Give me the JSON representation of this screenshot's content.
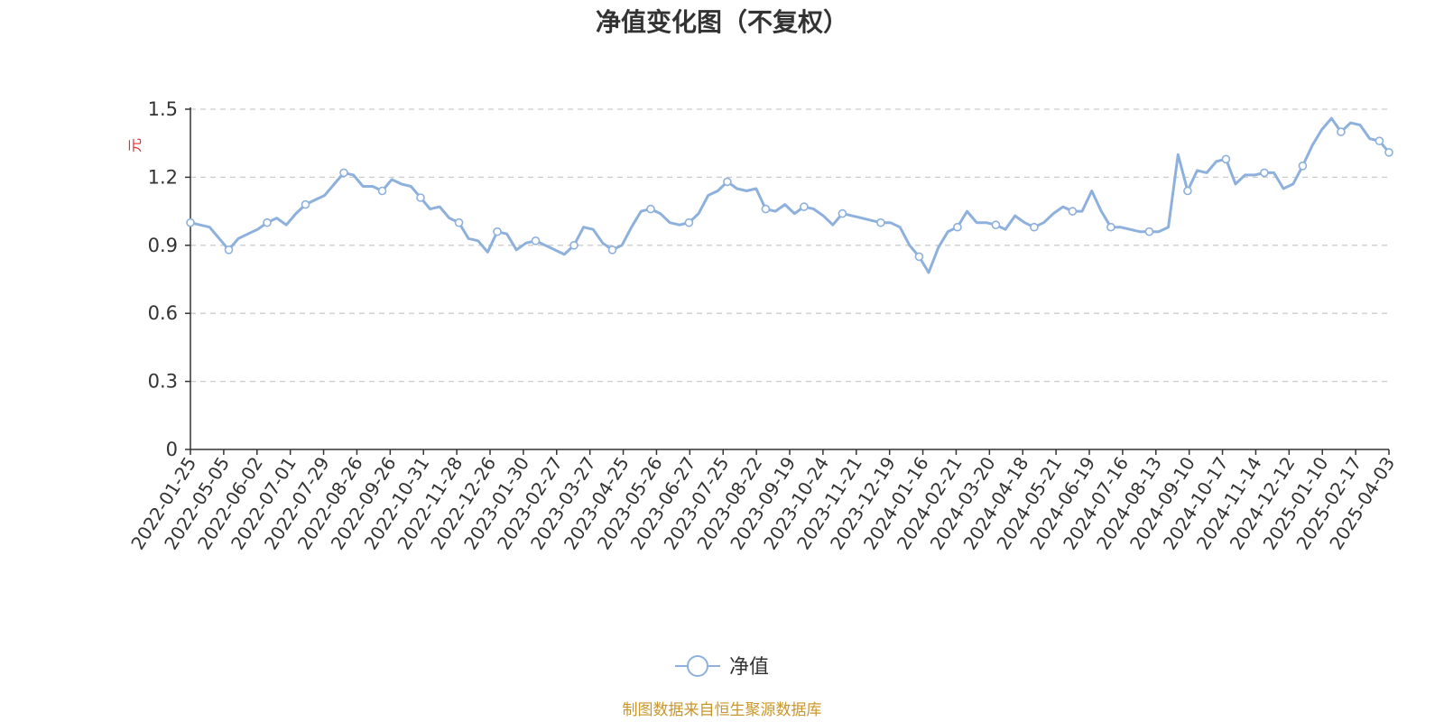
{
  "chart_data": {
    "type": "line",
    "title": "净值变化图（不复权）",
    "ylabel": "元",
    "ylim": [
      0,
      1.5
    ],
    "yticks": [
      "0",
      "0.3",
      "0.6",
      "0.9",
      "1.2",
      "1.5"
    ],
    "grid": true,
    "legend_position": "bottom-center",
    "x_tick_labels": [
      "2022-01-25",
      "2022-05-05",
      "2022-06-02",
      "2022-07-01",
      "2022-07-29",
      "2022-08-26",
      "2022-09-26",
      "2022-10-31",
      "2022-11-28",
      "2022-12-26",
      "2023-01-30",
      "2023-02-27",
      "2023-03-27",
      "2023-04-25",
      "2023-05-26",
      "2023-06-27",
      "2023-07-25",
      "2023-08-22",
      "2023-09-19",
      "2023-10-24",
      "2023-11-21",
      "2023-12-19",
      "2024-01-16",
      "2024-02-21",
      "2024-03-20",
      "2024-04-18",
      "2024-05-21",
      "2024-06-19",
      "2024-07-16",
      "2024-08-13",
      "2024-09-10",
      "2024-10-17",
      "2024-11-14",
      "2024-12-12",
      "2025-01-10",
      "2025-02-17",
      "2025-04-03"
    ],
    "series": [
      {
        "name": "净值",
        "color": "#8eb0dd",
        "values": [
          1.0,
          0.99,
          0.98,
          0.93,
          0.88,
          0.93,
          0.95,
          0.97,
          1.0,
          1.02,
          0.99,
          1.04,
          1.08,
          1.1,
          1.12,
          1.17,
          1.22,
          1.21,
          1.16,
          1.16,
          1.14,
          1.19,
          1.17,
          1.16,
          1.11,
          1.06,
          1.07,
          1.02,
          1.0,
          0.93,
          0.92,
          0.87,
          0.96,
          0.95,
          0.88,
          0.91,
          0.92,
          0.9,
          0.88,
          0.86,
          0.9,
          0.98,
          0.97,
          0.91,
          0.88,
          0.9,
          0.98,
          1.05,
          1.06,
          1.04,
          1.0,
          0.99,
          1.0,
          1.04,
          1.12,
          1.14,
          1.18,
          1.15,
          1.14,
          1.15,
          1.06,
          1.05,
          1.08,
          1.04,
          1.07,
          1.06,
          1.03,
          0.99,
          1.04,
          1.03,
          1.02,
          1.01,
          1.0,
          1.0,
          0.98,
          0.9,
          0.85,
          0.78,
          0.89,
          0.96,
          0.98,
          1.05,
          1.0,
          1.0,
          0.99,
          0.97,
          1.03,
          1.0,
          0.98,
          1.0,
          1.04,
          1.07,
          1.05,
          1.05,
          1.14,
          1.05,
          0.98,
          0.98,
          0.97,
          0.96,
          0.96,
          0.96,
          0.98,
          1.3,
          1.14,
          1.23,
          1.22,
          1.27,
          1.28,
          1.17,
          1.21,
          1.21,
          1.22,
          1.22,
          1.15,
          1.17,
          1.25,
          1.34,
          1.41,
          1.46,
          1.4,
          1.44,
          1.43,
          1.37,
          1.36,
          1.31
        ]
      }
    ]
  },
  "legend": {
    "label": "净值"
  },
  "source": {
    "text": "制图数据来自恒生聚源数据库",
    "color": "#c9962b"
  },
  "colors": {
    "line": "#8eb0dd",
    "unit_label": "#e03030",
    "axis": "#333333",
    "grid": "#cccccc"
  }
}
